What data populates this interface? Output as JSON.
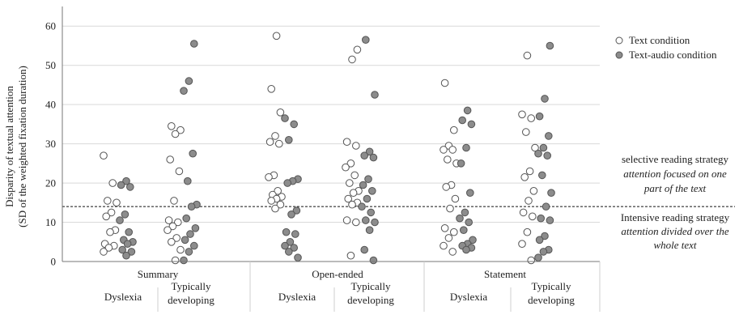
{
  "chart_data": {
    "type": "scatter",
    "ylabel_lines": [
      "Disparity of textual attention",
      "(SD of the weighted fixation duration)"
    ],
    "ylim": [
      0,
      65
    ],
    "yticks": [
      0,
      10,
      20,
      30,
      40,
      50,
      60
    ],
    "grid": "horizontal",
    "legend_placement": "right",
    "groups": [
      {
        "label": "Summary",
        "subgroups": [
          {
            "label_lines": [
              "Dyslexia"
            ]
          },
          {
            "label_lines": [
              "Typically",
              "developing"
            ]
          }
        ]
      },
      {
        "label": "Open-ended",
        "subgroups": [
          {
            "label_lines": [
              "Dyslexia"
            ]
          },
          {
            "label_lines": [
              "Typically",
              "developing"
            ]
          }
        ]
      },
      {
        "label": "Statement",
        "subgroups": [
          {
            "label_lines": [
              "Dyslexia"
            ]
          },
          {
            "label_lines": [
              "Typically",
              "developing"
            ]
          }
        ]
      }
    ],
    "series": [
      {
        "name": "Text condition",
        "color": "#ffffff",
        "values": [
          [
            27,
            20,
            15.5,
            15,
            12.5,
            11.5,
            8,
            7.5,
            4.5,
            4,
            3.5,
            2.5
          ],
          [
            34.5,
            33.5,
            32.5,
            26,
            23,
            15.5,
            10.5,
            10,
            9,
            8,
            6,
            5,
            3,
            0.3
          ],
          [
            57.5,
            44,
            38,
            32,
            30.5,
            30,
            22,
            21.5,
            18,
            17,
            16.5,
            16,
            15.5,
            14.5,
            13.5
          ],
          [
            54,
            51.5,
            30.5,
            29.5,
            25,
            24,
            22,
            20,
            18,
            17.5,
            16,
            15,
            14.5,
            10.5,
            10,
            1.5
          ],
          [
            45.5,
            33.5,
            29.5,
            28.5,
            28.5,
            26,
            25,
            19.5,
            19,
            16,
            13.5,
            8.5,
            7.5,
            6,
            4,
            2.5
          ],
          [
            52.5,
            37.5,
            36.5,
            33,
            29,
            23,
            21.5,
            18,
            15.5,
            12.5,
            11.5,
            7.5,
            4.5,
            0.3
          ]
        ]
      },
      {
        "name": "Text-audio condition",
        "color": "#8c8c8c",
        "values": [
          [
            20.5,
            19.5,
            19,
            12,
            10.5,
            7.5,
            5.5,
            5,
            4.5,
            3,
            2.5,
            1.5
          ],
          [
            55.5,
            46,
            43.5,
            27.5,
            20.5,
            14.5,
            14,
            11,
            8.5,
            7,
            5.5,
            4,
            2.5,
            0.3
          ],
          [
            36.5,
            35,
            31,
            21,
            20.5,
            20,
            13,
            12,
            7.5,
            7,
            5,
            4,
            3.5,
            2.5,
            1
          ],
          [
            56.5,
            42.5,
            28,
            27,
            26.5,
            21,
            19.5,
            18,
            16,
            14,
            12.5,
            10.5,
            10,
            8,
            3,
            0.3
          ],
          [
            38.5,
            36,
            35,
            29,
            25,
            17.5,
            12.5,
            11,
            10,
            8,
            5.5,
            4.5,
            4,
            3.5,
            3
          ],
          [
            55,
            41.5,
            37,
            32,
            29,
            27.5,
            27,
            22,
            17.5,
            14,
            11,
            10.5,
            6.5,
            5.5,
            3,
            2.5,
            1
          ]
        ]
      }
    ],
    "reference_line": {
      "y": 14,
      "style": "dashed"
    },
    "annotations": {
      "above": {
        "title": "selective reading strategy",
        "lines": [
          "attention focused on one",
          "part of the text"
        ]
      },
      "below": {
        "title": "Intensive reading strategy",
        "lines": [
          "attention divided over the",
          "whole text"
        ]
      }
    }
  }
}
